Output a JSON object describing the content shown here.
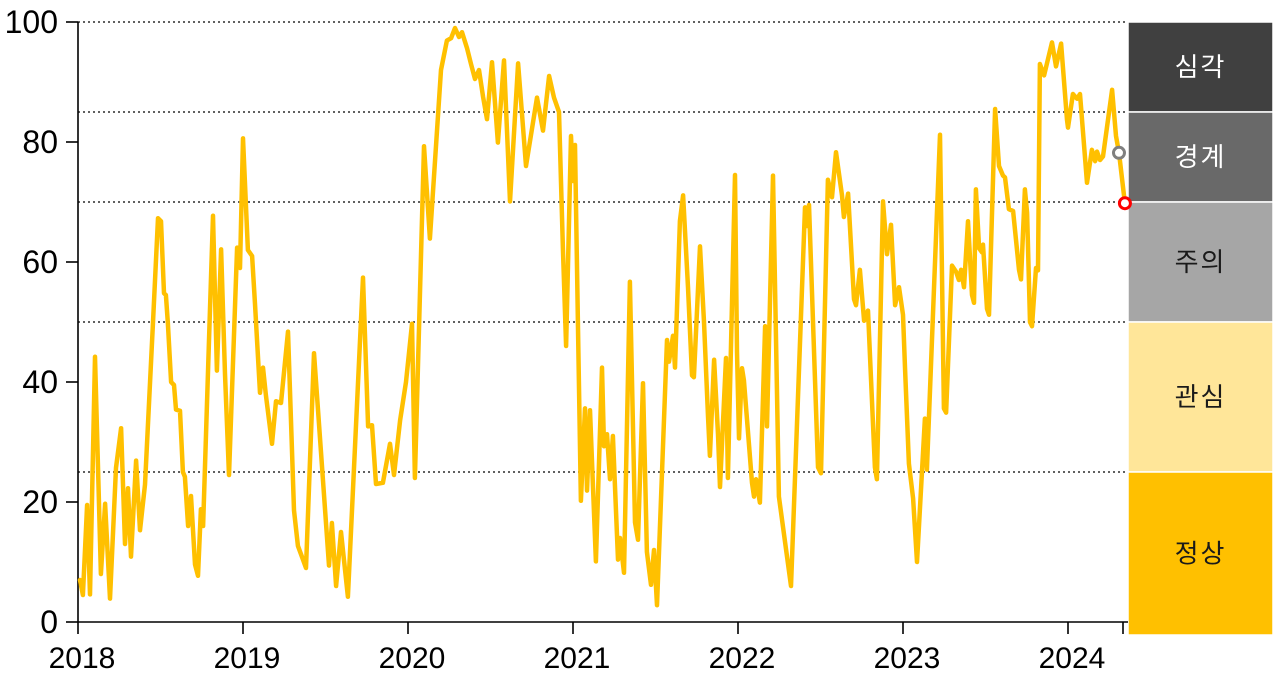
{
  "chart_data": {
    "type": "line",
    "title": "",
    "xlabel": "",
    "ylabel": "",
    "ylim": [
      0,
      100
    ],
    "y_ticks": [
      "0",
      "20",
      "40",
      "60",
      "80",
      "100"
    ],
    "x_ticks": [
      "2018",
      "2019",
      "2020",
      "2021",
      "2022",
      "2023",
      "2024"
    ],
    "x_tick_years": [
      2018,
      2019,
      2020,
      2021,
      2022,
      2023,
      2024
    ],
    "gridline_values": [
      25,
      50,
      70,
      85,
      100
    ],
    "grid_style": "dotted",
    "line_color": "#FFC000",
    "axis_color": "#000000",
    "zones": [
      {
        "label": "심각",
        "from": 85,
        "to": 100,
        "bg": "#404040",
        "text_color": "#FFFFFF"
      },
      {
        "label": "경계",
        "from": 70,
        "to": 85,
        "bg": "#696969",
        "text_color": "#FFFFFF"
      },
      {
        "label": "주의",
        "from": 50,
        "to": 70,
        "bg": "#A6A6A6",
        "text_color": "#1A1A1A"
      },
      {
        "label": "관심",
        "from": 25,
        "to": 50,
        "bg": "#FFE699",
        "text_color": "#1A1A1A"
      },
      {
        "label": "정상",
        "from": 0,
        "to": 25,
        "bg": "#FFC000",
        "text_color": "#1A1A1A"
      }
    ],
    "markers": [
      {
        "name": "previous-value-marker",
        "t": 2024.309,
        "v": 78.2,
        "color": "#7F7F7F"
      },
      {
        "name": "latest-value-marker",
        "t": 2024.345,
        "v": 69.8,
        "color": "#FF0000"
      }
    ],
    "points": [
      [
        2018.012,
        7
      ],
      [
        2018.03,
        4.5
      ],
      [
        2018.055,
        19.5
      ],
      [
        2018.073,
        4.6
      ],
      [
        2018.103,
        44.2
      ],
      [
        2018.139,
        8
      ],
      [
        2018.164,
        19.7
      ],
      [
        2018.194,
        3.9
      ],
      [
        2018.23,
        25.7
      ],
      [
        2018.261,
        32.3
      ],
      [
        2018.285,
        13
      ],
      [
        2018.303,
        22.3
      ],
      [
        2018.321,
        10.9
      ],
      [
        2018.352,
        26.9
      ],
      [
        2018.376,
        15.3
      ],
      [
        2018.406,
        22.9
      ],
      [
        2018.455,
        50.3
      ],
      [
        2018.485,
        67.3
      ],
      [
        2018.503,
        66.8
      ],
      [
        2018.521,
        54.8
      ],
      [
        2018.533,
        54.5
      ],
      [
        2018.545,
        49.7
      ],
      [
        2018.564,
        40
      ],
      [
        2018.582,
        39.5
      ],
      [
        2018.594,
        35.4
      ],
      [
        2018.618,
        35.2
      ],
      [
        2018.636,
        25
      ],
      [
        2018.648,
        24.2
      ],
      [
        2018.667,
        16
      ],
      [
        2018.685,
        21
      ],
      [
        2018.709,
        9.6
      ],
      [
        2018.727,
        7.7
      ],
      [
        2018.745,
        18.8
      ],
      [
        2018.758,
        16
      ],
      [
        2018.8,
        52.2
      ],
      [
        2018.818,
        67.7
      ],
      [
        2018.842,
        41.9
      ],
      [
        2018.867,
        62.1
      ],
      [
        2018.891,
        41.3
      ],
      [
        2018.915,
        24.5
      ],
      [
        2018.964,
        62.4
      ],
      [
        2018.982,
        59
      ],
      [
        2019,
        80.6
      ],
      [
        2019.03,
        62
      ],
      [
        2019.055,
        61
      ],
      [
        2019.073,
        53
      ],
      [
        2019.103,
        38.2
      ],
      [
        2019.121,
        42.4
      ],
      [
        2019.139,
        37.8
      ],
      [
        2019.176,
        29.7
      ],
      [
        2019.2,
        36.8
      ],
      [
        2019.23,
        36.5
      ],
      [
        2019.273,
        48.4
      ],
      [
        2019.309,
        18.6
      ],
      [
        2019.333,
        12.7
      ],
      [
        2019.358,
        10.8
      ],
      [
        2019.382,
        9
      ],
      [
        2019.43,
        44.8
      ],
      [
        2019.521,
        9.4
      ],
      [
        2019.539,
        16.5
      ],
      [
        2019.564,
        6
      ],
      [
        2019.594,
        15
      ],
      [
        2019.636,
        4.2
      ],
      [
        2019.727,
        57.4
      ],
      [
        2019.758,
        32.6
      ],
      [
        2019.782,
        32.8
      ],
      [
        2019.806,
        23
      ],
      [
        2019.848,
        23.2
      ],
      [
        2019.891,
        29.7
      ],
      [
        2019.915,
        24.5
      ],
      [
        2019.952,
        33.6
      ],
      [
        2019.988,
        40
      ],
      [
        2020.024,
        49.7
      ],
      [
        2020.042,
        24
      ],
      [
        2020.097,
        79.3
      ],
      [
        2020.133,
        63.9
      ],
      [
        2020.2,
        92
      ],
      [
        2020.236,
        96.9
      ],
      [
        2020.261,
        97.3
      ],
      [
        2020.285,
        99
      ],
      [
        2020.309,
        97.5
      ],
      [
        2020.327,
        98.3
      ],
      [
        2020.358,
        95.6
      ],
      [
        2020.382,
        93
      ],
      [
        2020.406,
        90.5
      ],
      [
        2020.43,
        92
      ],
      [
        2020.455,
        87.5
      ],
      [
        2020.479,
        83.8
      ],
      [
        2020.509,
        93.3
      ],
      [
        2020.545,
        79.9
      ],
      [
        2020.582,
        93.6
      ],
      [
        2020.618,
        70.1
      ],
      [
        2020.667,
        93.1
      ],
      [
        2020.715,
        76
      ],
      [
        2020.782,
        87.4
      ],
      [
        2020.818,
        81.9
      ],
      [
        2020.855,
        91
      ],
      [
        2020.885,
        87.4
      ],
      [
        2020.915,
        85
      ],
      [
        2020.939,
        62.3
      ],
      [
        2020.958,
        46
      ],
      [
        2020.988,
        81
      ],
      [
        2021,
        73.5
      ],
      [
        2021.012,
        79.5
      ],
      [
        2021.03,
        50
      ],
      [
        2021.048,
        20.2
      ],
      [
        2021.073,
        35.6
      ],
      [
        2021.085,
        21.9
      ],
      [
        2021.103,
        35.3
      ],
      [
        2021.139,
        10.1
      ],
      [
        2021.176,
        42.4
      ],
      [
        2021.188,
        29.3
      ],
      [
        2021.206,
        31.3
      ],
      [
        2021.224,
        23.8
      ],
      [
        2021.242,
        31
      ],
      [
        2021.273,
        10.4
      ],
      [
        2021.285,
        14
      ],
      [
        2021.309,
        8.2
      ],
      [
        2021.345,
        56.7
      ],
      [
        2021.376,
        16.6
      ],
      [
        2021.394,
        13.7
      ],
      [
        2021.424,
        39.8
      ],
      [
        2021.448,
        11.7
      ],
      [
        2021.473,
        6.2
      ],
      [
        2021.491,
        12
      ],
      [
        2021.509,
        2.8
      ],
      [
        2021.57,
        47
      ],
      [
        2021.582,
        43.4
      ],
      [
        2021.606,
        47.7
      ],
      [
        2021.618,
        42.4
      ],
      [
        2021.648,
        66.8
      ],
      [
        2021.667,
        71.1
      ],
      [
        2021.697,
        55.8
      ],
      [
        2021.721,
        41.1
      ],
      [
        2021.733,
        40.8
      ],
      [
        2021.77,
        62.6
      ],
      [
        2021.794,
        50
      ],
      [
        2021.818,
        34.3
      ],
      [
        2021.83,
        27.7
      ],
      [
        2021.855,
        43.7
      ],
      [
        2021.879,
        31.3
      ],
      [
        2021.891,
        22.5
      ],
      [
        2021.927,
        44
      ],
      [
        2021.939,
        24
      ],
      [
        2021.982,
        74.5
      ],
      [
        2021.994,
        45
      ],
      [
        2022.006,
        30.6
      ],
      [
        2022.024,
        42.3
      ],
      [
        2022.036,
        40.3
      ],
      [
        2022.085,
        23.2
      ],
      [
        2022.097,
        20.9
      ],
      [
        2022.109,
        23.8
      ],
      [
        2022.133,
        19.9
      ],
      [
        2022.164,
        49.3
      ],
      [
        2022.176,
        32.6
      ],
      [
        2022.212,
        74.4
      ],
      [
        2022.248,
        20.9
      ],
      [
        2022.321,
        6
      ],
      [
        2022.406,
        69.1
      ],
      [
        2022.418,
        66
      ],
      [
        2022.43,
        69.5
      ],
      [
        2022.485,
        25.8
      ],
      [
        2022.503,
        24.8
      ],
      [
        2022.545,
        73.7
      ],
      [
        2022.57,
        70.8
      ],
      [
        2022.594,
        78.3
      ],
      [
        2022.63,
        71.1
      ],
      [
        2022.642,
        67.5
      ],
      [
        2022.667,
        71.4
      ],
      [
        2022.703,
        53.8
      ],
      [
        2022.715,
        52.8
      ],
      [
        2022.739,
        58.7
      ],
      [
        2022.764,
        50.2
      ],
      [
        2022.788,
        51.9
      ],
      [
        2022.83,
        25.8
      ],
      [
        2022.842,
        23.8
      ],
      [
        2022.879,
        70.1
      ],
      [
        2022.903,
        61.3
      ],
      [
        2022.927,
        66.2
      ],
      [
        2022.952,
        52.8
      ],
      [
        2022.976,
        55.8
      ],
      [
        2023,
        51.2
      ],
      [
        2023.012,
        42.4
      ],
      [
        2023.036,
        26.4
      ],
      [
        2023.061,
        20.6
      ],
      [
        2023.085,
        10
      ],
      [
        2023.133,
        33.9
      ],
      [
        2023.145,
        25.4
      ],
      [
        2023.224,
        81.2
      ],
      [
        2023.248,
        35.6
      ],
      [
        2023.261,
        34.9
      ],
      [
        2023.297,
        59.4
      ],
      [
        2023.321,
        58.4
      ],
      [
        2023.339,
        57
      ],
      [
        2023.352,
        58.7
      ],
      [
        2023.37,
        55.8
      ],
      [
        2023.394,
        66.8
      ],
      [
        2023.418,
        54.5
      ],
      [
        2023.43,
        53.2
      ],
      [
        2023.442,
        72.1
      ],
      [
        2023.461,
        62.3
      ],
      [
        2023.479,
        61.6
      ],
      [
        2023.485,
        62.9
      ],
      [
        2023.509,
        52.2
      ],
      [
        2023.521,
        51.2
      ],
      [
        2023.558,
        85.5
      ],
      [
        2023.582,
        76
      ],
      [
        2023.606,
        74.4
      ],
      [
        2023.618,
        74.1
      ],
      [
        2023.642,
        68.8
      ],
      [
        2023.667,
        68.5
      ],
      [
        2023.703,
        58.7
      ],
      [
        2023.715,
        57.1
      ],
      [
        2023.739,
        72.1
      ],
      [
        2023.752,
        68.2
      ],
      [
        2023.77,
        50
      ],
      [
        2023.782,
        49.3
      ],
      [
        2023.806,
        59
      ],
      [
        2023.818,
        58.6
      ],
      [
        2023.83,
        93
      ],
      [
        2023.855,
        91.1
      ],
      [
        2023.903,
        96.6
      ],
      [
        2023.927,
        92.6
      ],
      [
        2023.958,
        96.4
      ],
      [
        2023.994,
        83.7
      ],
      [
        2024,
        82.4
      ],
      [
        2024.03,
        88
      ],
      [
        2024.055,
        87.2
      ],
      [
        2024.073,
        88
      ],
      [
        2024.115,
        73.2
      ],
      [
        2024.145,
        78.7
      ],
      [
        2024.164,
        76.8
      ],
      [
        2024.176,
        78.4
      ],
      [
        2024.194,
        77
      ],
      [
        2024.212,
        77.6
      ],
      [
        2024.267,
        88.7
      ],
      [
        2024.291,
        81
      ],
      [
        2024.309,
        78.2
      ],
      [
        2024.345,
        69.8
      ]
    ]
  }
}
